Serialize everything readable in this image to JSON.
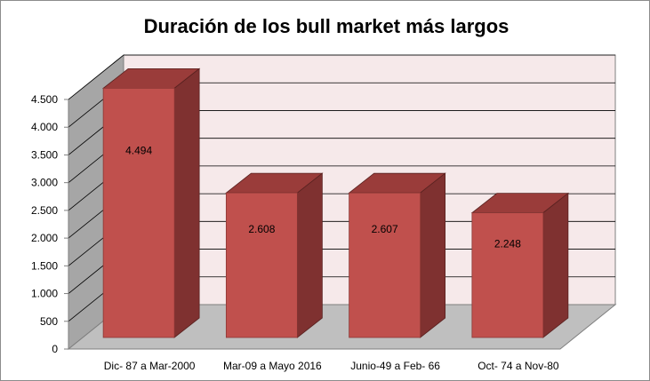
{
  "chart_data": {
    "type": "bar",
    "title": "Duración de los bull market más largos",
    "categories": [
      "Dic- 87 a Mar-2000",
      "Mar-09 a Mayo 2016",
      "Junio-49 a Feb- 66",
      "Oct- 74 a Nov-80"
    ],
    "values": [
      4494,
      2608,
      2607,
      2248
    ],
    "data_labels": [
      "4.494",
      "2.608",
      "2.607",
      "2.248"
    ],
    "ylim": [
      0,
      4500
    ],
    "yticks": [
      0,
      500,
      1000,
      1500,
      2000,
      2500,
      3000,
      3500,
      4000,
      4500
    ],
    "ytick_labels": [
      "0",
      "500",
      "1.000",
      "1.500",
      "2.000",
      "2.500",
      "3.000",
      "3.500",
      "4.000",
      "4.500"
    ],
    "grid": true,
    "projection": "3d",
    "colors": {
      "bar_front": "#c0504d",
      "bar_side": "#7f3130",
      "bar_top": "#9a3c3a",
      "back_wall": "#f6e9ea",
      "side_wall": "#a6a6a6",
      "floor": "#bfbfbf",
      "grid": "#000000"
    }
  }
}
